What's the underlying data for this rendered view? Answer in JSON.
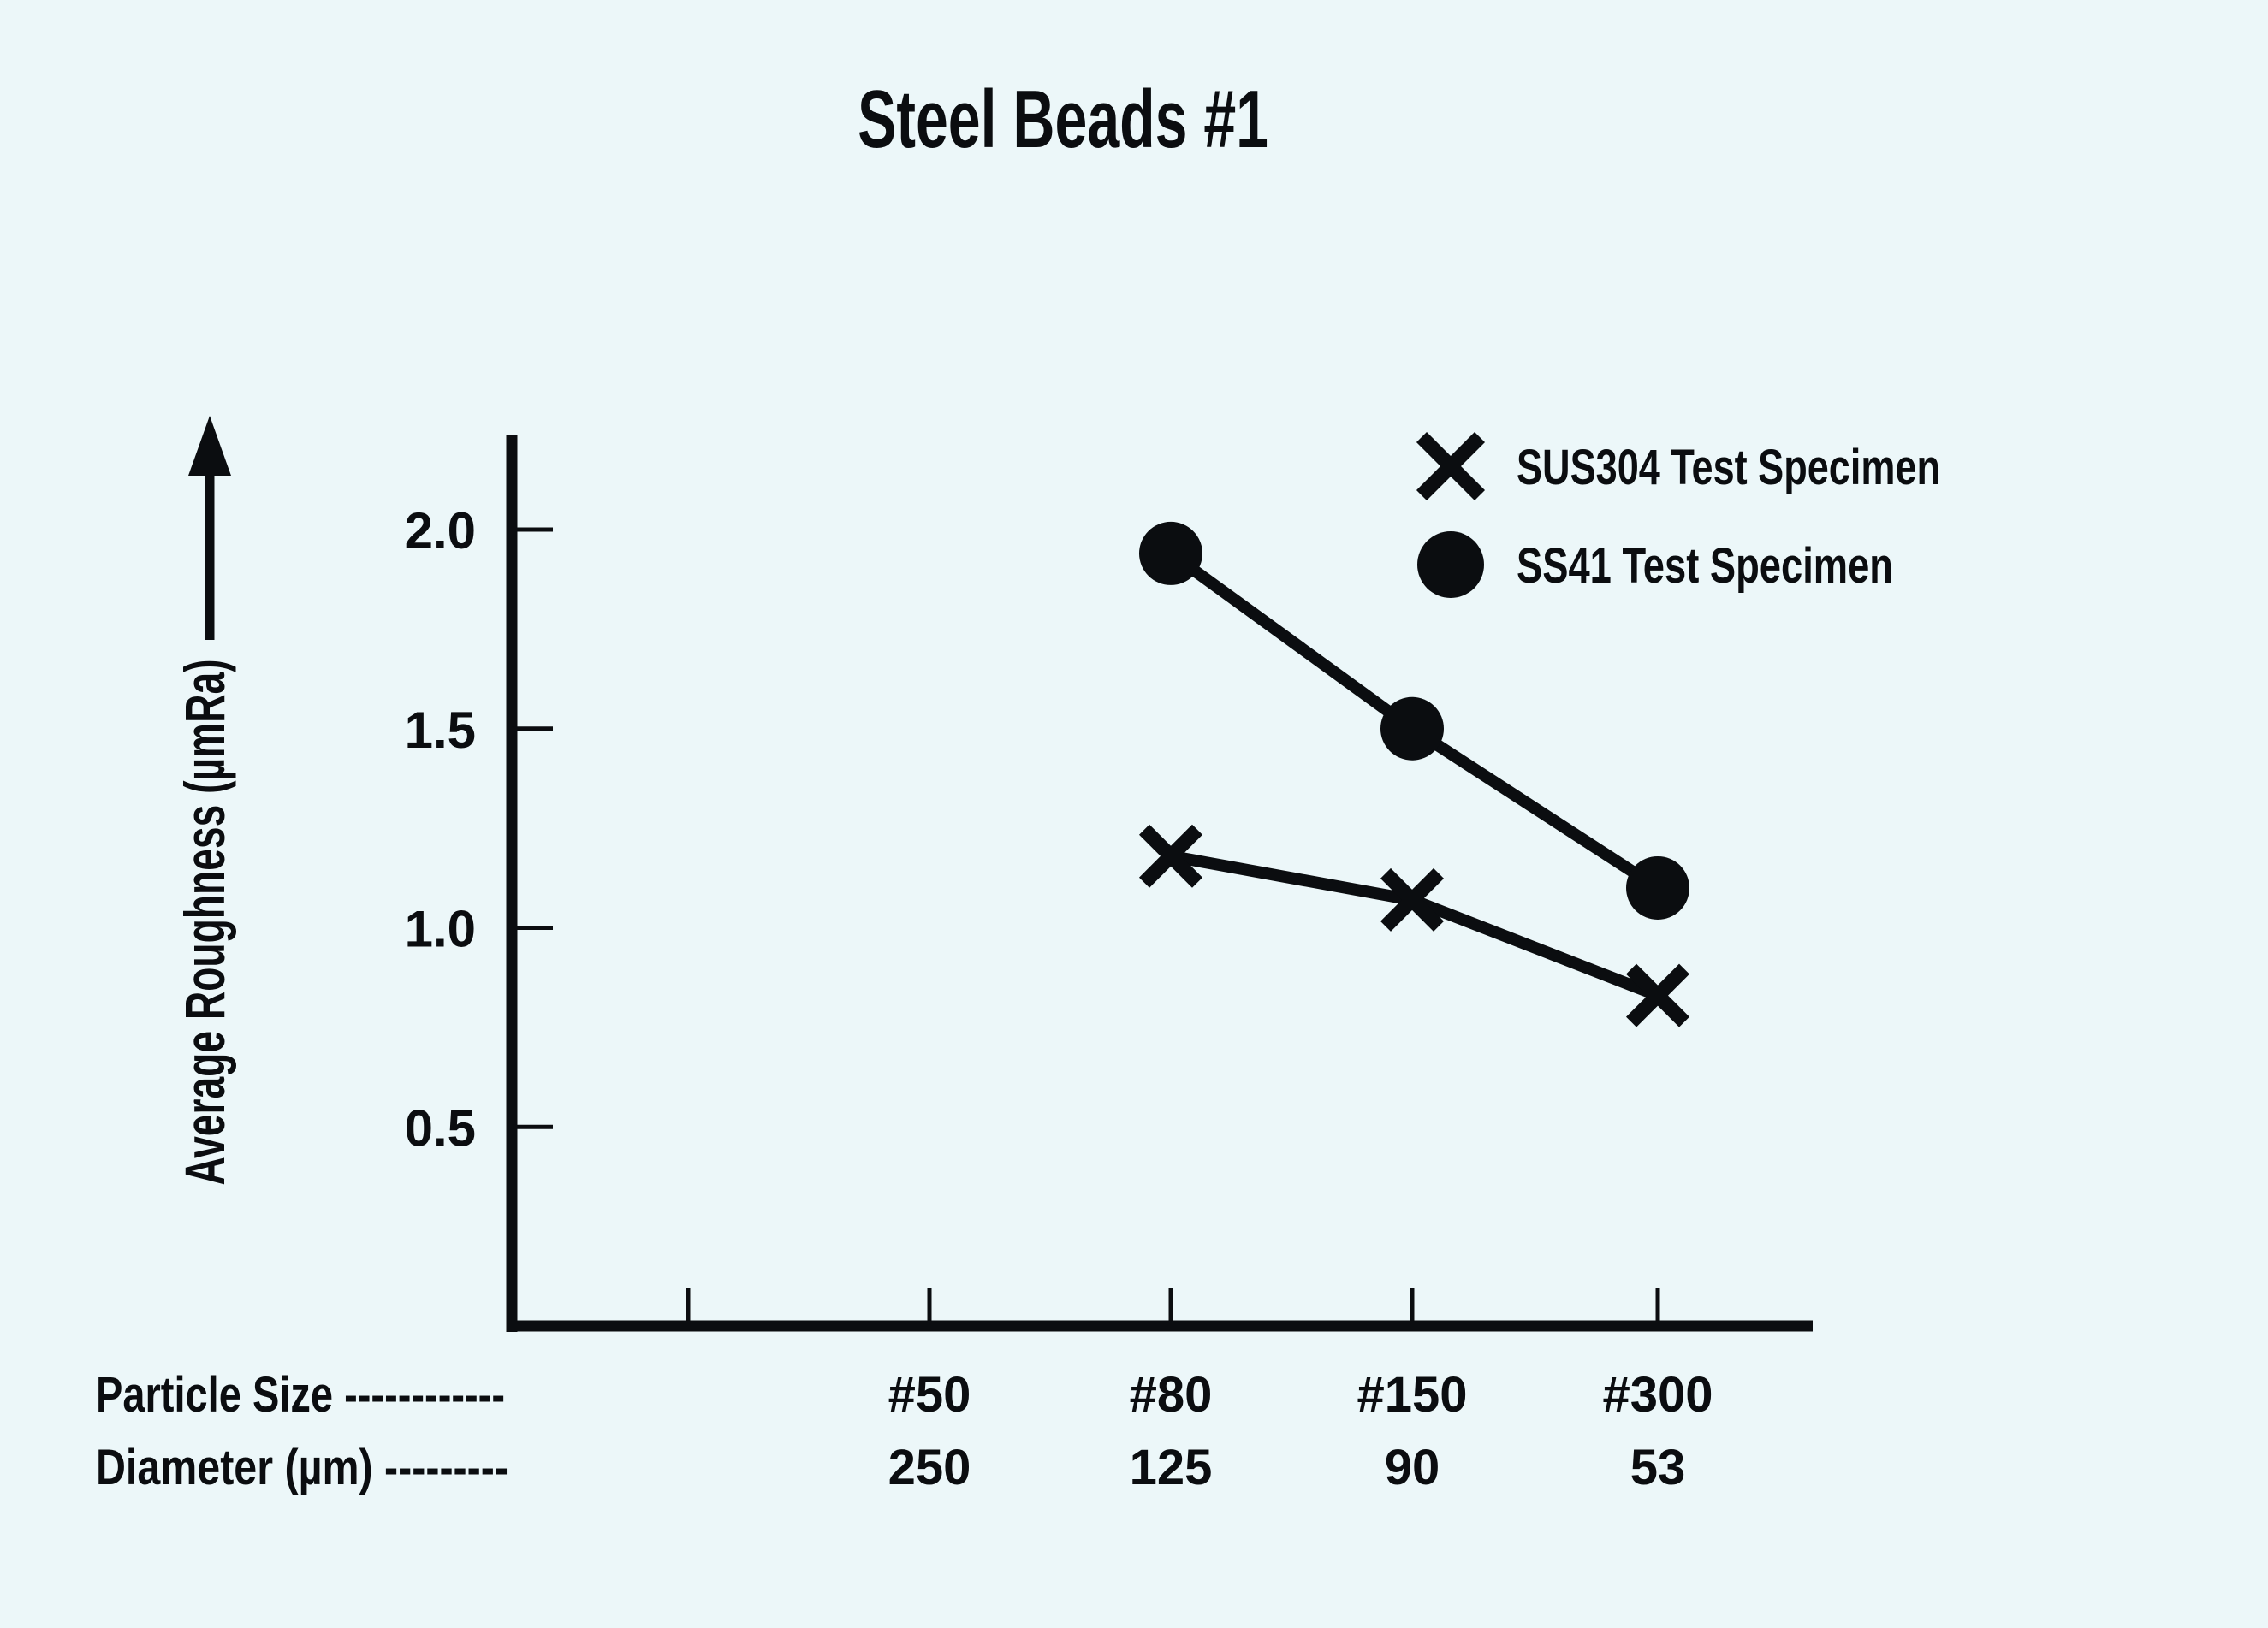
{
  "page": {
    "background": "#ecf7f9",
    "ink": "#0b0d10"
  },
  "chart_data": {
    "type": "line",
    "title": "Steel Beads #1",
    "ylabel": "Average Roughness (µmRa)",
    "y_axis": {
      "ticks": [
        2.0,
        1.5,
        1.0,
        0.5
      ],
      "tick_labels": [
        "2.0",
        "1.5",
        "1.0",
        "0.5"
      ],
      "ylim": [
        0,
        2.25
      ],
      "grid": false
    },
    "x_axis": {
      "row1_header": "Particle Size ------------",
      "row2_header": "Diameter (µm) ---------",
      "categories": [
        "#50",
        "#80",
        "#150",
        "#300"
      ],
      "diameters": [
        "250",
        "125",
        "90",
        "53"
      ],
      "has_unlabeled_leading_tick": true
    },
    "series": [
      {
        "name": "SS41 Test Specimen",
        "marker": "circle",
        "categories": [
          "#80",
          "#150",
          "#300"
        ],
        "values": [
          1.94,
          1.5,
          1.1
        ]
      },
      {
        "name": "SUS304 Test Specimen",
        "marker": "x",
        "categories": [
          "#80",
          "#150",
          "#300"
        ],
        "values": [
          1.18,
          1.07,
          0.83
        ]
      }
    ],
    "legend": {
      "position": "top-right",
      "items": [
        {
          "label": "SUS304 Test Specimen",
          "marker": "x"
        },
        {
          "label": "SS41 Test Specimen",
          "marker": "circle"
        }
      ]
    }
  }
}
